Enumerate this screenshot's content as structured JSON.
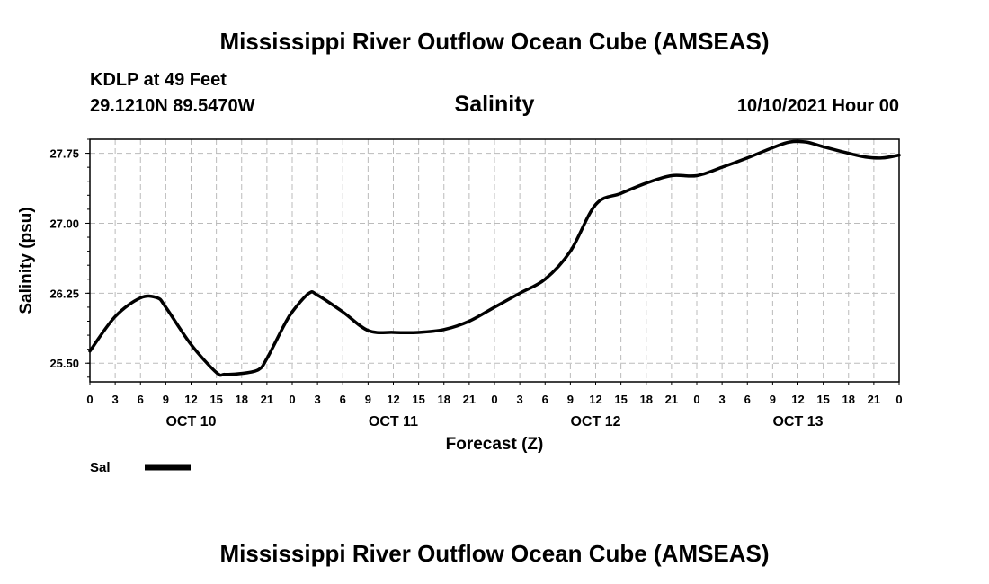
{
  "title_top": "Mississippi River Outflow Ocean Cube (AMSEAS)",
  "title_bottom": "Mississippi River Outflow Ocean Cube (AMSEAS)",
  "station": "KDLP at 49 Feet",
  "location": "29.1210N  89.5470W",
  "subtitle": "Salinity",
  "datetime": "10/10/2021 Hour 00",
  "chart_data": {
    "type": "line",
    "title": "Salinity",
    "xlabel": "Forecast (Z)",
    "ylabel": "Salinity (psu)",
    "xlim": [
      0,
      96
    ],
    "ylim": [
      25.3,
      27.9
    ],
    "grid": true,
    "y_ticks": [
      25.5,
      26.25,
      27.0,
      27.75
    ],
    "y_tick_labels": [
      "25.50",
      "26.25",
      "27.00",
      "27.75"
    ],
    "x_ticks": [
      0,
      3,
      6,
      9,
      12,
      15,
      18,
      21,
      24,
      27,
      30,
      33,
      36,
      39,
      42,
      45,
      48,
      51,
      54,
      57,
      60,
      63,
      66,
      69,
      72,
      75,
      78,
      81,
      84,
      87,
      90,
      93,
      96
    ],
    "x_tick_labels": [
      "0",
      "3",
      "6",
      "9",
      "12",
      "15",
      "18",
      "21",
      "0",
      "3",
      "6",
      "9",
      "12",
      "15",
      "18",
      "21",
      "0",
      "3",
      "6",
      "9",
      "12",
      "15",
      "18",
      "21",
      "0",
      "3",
      "6",
      "9",
      "12",
      "15",
      "18",
      "21",
      "0"
    ],
    "date_labels": [
      {
        "label": "OCT 10",
        "x": 12
      },
      {
        "label": "OCT 11",
        "x": 36
      },
      {
        "label": "OCT 12",
        "x": 60
      },
      {
        "label": "OCT 13",
        "x": 84
      }
    ],
    "legend": [
      {
        "name": "Sal",
        "color": "#000000"
      }
    ],
    "series": [
      {
        "name": "Sal",
        "x": [
          0,
          3,
          6,
          8,
          9,
          12,
          15,
          16,
          18,
          20,
          21,
          23,
          24,
          26,
          27,
          30,
          33,
          36,
          39,
          42,
          45,
          48,
          51,
          54,
          57,
          60,
          63,
          66,
          69,
          72,
          75,
          78,
          81,
          83,
          85,
          87,
          90,
          92,
          94,
          96
        ],
        "y": [
          25.63,
          26.0,
          26.2,
          26.2,
          26.1,
          25.7,
          25.4,
          25.38,
          25.39,
          25.43,
          25.55,
          25.9,
          26.05,
          26.25,
          26.23,
          26.05,
          25.85,
          25.83,
          25.83,
          25.86,
          25.95,
          26.1,
          26.25,
          26.4,
          26.7,
          27.2,
          27.32,
          27.43,
          27.51,
          27.51,
          27.6,
          27.7,
          27.81,
          27.87,
          27.87,
          27.82,
          27.75,
          27.71,
          27.7,
          27.73
        ]
      }
    ]
  }
}
